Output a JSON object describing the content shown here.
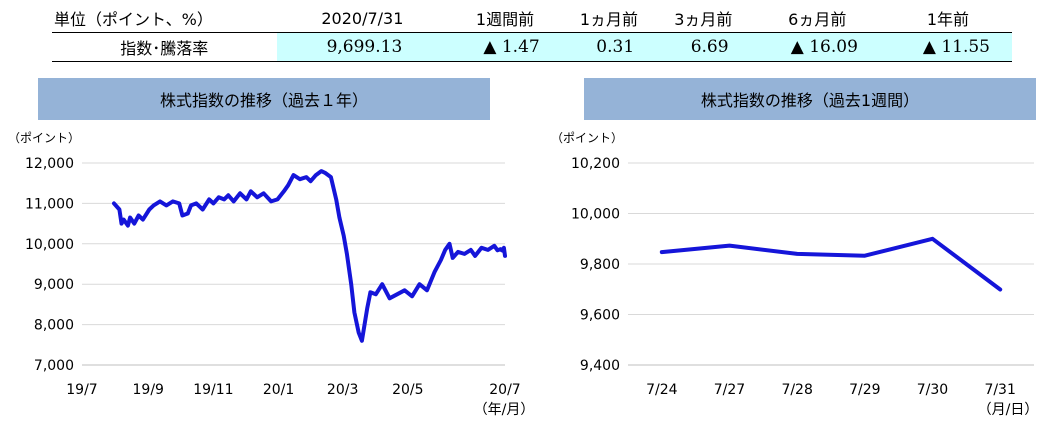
{
  "summary_table": {
    "unit_label": "単位（ポイント、%）",
    "row_label": "指数･騰落率",
    "columns": [
      "2020/7/31",
      "1週間前",
      "1ヵ月前",
      "3ヵ月前",
      "6ヵ月前",
      "1年前"
    ],
    "values": [
      "9,699.13",
      "▲ 1.47",
      "0.31",
      "6.69",
      "▲ 16.09",
      "▲ 11.55"
    ]
  },
  "colors": {
    "line": "#1515d9",
    "title_bg": "#95b3d7",
    "cell_bg": "#ccffff",
    "grid": "#d9d9d9"
  },
  "chart_data": [
    {
      "type": "line",
      "title": "株式指数の推移（過去１年）",
      "yunit": "（ポイント）",
      "xunit": "（年/月）",
      "ylim": [
        7000,
        12000
      ],
      "yticks": [
        "7,000",
        "8,000",
        "9,000",
        "10,000",
        "11,000",
        "12,000"
      ],
      "xticks": [
        "19/7",
        "19/9",
        "19/11",
        "20/1",
        "20/3",
        "20/5",
        "20/7"
      ],
      "grid": true,
      "legend": "none",
      "series": [
        {
          "x": [
            "2019-07-31",
            "2019-08-05",
            "2019-08-07",
            "2019-08-09",
            "2019-08-13",
            "2019-08-15",
            "2019-08-19",
            "2019-08-23",
            "2019-08-27",
            "2019-09-02",
            "2019-09-06",
            "2019-09-12",
            "2019-09-18",
            "2019-09-24",
            "2019-09-30",
            "2019-10-03",
            "2019-10-08",
            "2019-10-11",
            "2019-10-16",
            "2019-10-22",
            "2019-10-28",
            "2019-11-01",
            "2019-11-06",
            "2019-11-11",
            "2019-11-15",
            "2019-11-20",
            "2019-11-26",
            "2019-12-02",
            "2019-12-06",
            "2019-12-12",
            "2019-12-18",
            "2019-12-25",
            "2019-12-31",
            "2020-01-06",
            "2020-01-10",
            "2020-01-15",
            "2020-01-21",
            "2020-01-27",
            "2020-01-31",
            "2020-02-05",
            "2020-02-10",
            "2020-02-14",
            "2020-02-19",
            "2020-02-24",
            "2020-02-27",
            "2020-03-02",
            "2020-03-05",
            "2020-03-09",
            "2020-03-12",
            "2020-03-16",
            "2020-03-19",
            "2020-03-24",
            "2020-03-27",
            "2020-04-01",
            "2020-04-07",
            "2020-04-14",
            "2020-04-21",
            "2020-04-28",
            "2020-05-05",
            "2020-05-12",
            "2020-05-19",
            "2020-05-26",
            "2020-06-01",
            "2020-06-05",
            "2020-06-09",
            "2020-06-12",
            "2020-06-17",
            "2020-06-23",
            "2020-06-29",
            "2020-07-03",
            "2020-07-09",
            "2020-07-15",
            "2020-07-21",
            "2020-07-24",
            "2020-07-27",
            "2020-07-28",
            "2020-07-29",
            "2020-07-30",
            "2020-07-31"
          ],
          "y": [
            11000,
            10850,
            10500,
            10600,
            10450,
            10650,
            10500,
            10700,
            10600,
            10850,
            10950,
            11050,
            10950,
            11050,
            11000,
            10700,
            10750,
            10950,
            11000,
            10850,
            11100,
            11000,
            11150,
            11100,
            11200,
            11050,
            11250,
            11100,
            11300,
            11150,
            11250,
            11050,
            11100,
            11300,
            11450,
            11700,
            11600,
            11650,
            11550,
            11700,
            11800,
            11750,
            11650,
            11100,
            10650,
            10200,
            9750,
            9000,
            8300,
            7800,
            7600,
            8400,
            8800,
            8750,
            9000,
            8650,
            8750,
            8850,
            8700,
            9000,
            8850,
            9300,
            9600,
            9850,
            10000,
            9650,
            9800,
            9750,
            9850,
            9700,
            9900,
            9850,
            9950,
            9840,
            9870,
            9840,
            9830,
            9900,
            9700
          ]
        }
      ]
    },
    {
      "type": "line",
      "title": "株式指数の推移（過去1週間）",
      "yunit": "（ポイント）",
      "xunit": "（月/日）",
      "ylim": [
        9400,
        10200
      ],
      "yticks": [
        "9,400",
        "9,600",
        "9,800",
        "10,000",
        "10,200"
      ],
      "categories": [
        "7/24",
        "7/27",
        "7/28",
        "7/29",
        "7/30",
        "7/31"
      ],
      "grid": true,
      "legend": "none",
      "series": [
        {
          "values": [
            9847,
            9873,
            9840,
            9833,
            9900,
            9699
          ]
        }
      ]
    }
  ]
}
